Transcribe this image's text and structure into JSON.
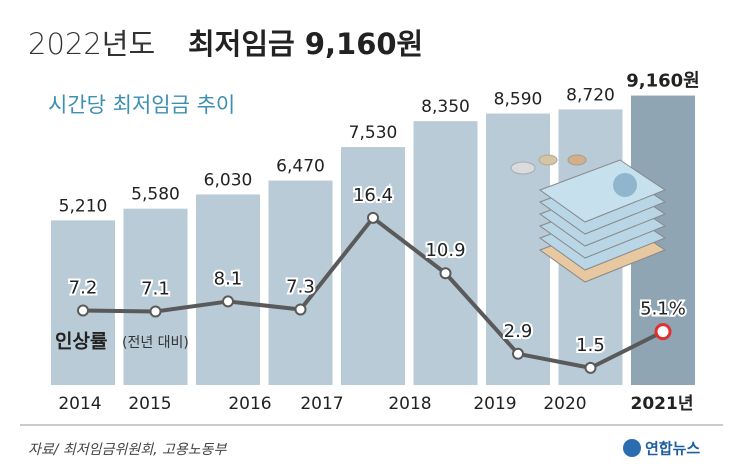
{
  "chart_data": {
    "type": "bar",
    "title_prefix": "2022년도",
    "title": "최저임금 9,160원",
    "subtitle": "시간당 최저임금 추이",
    "categories": [
      "2014",
      "2015",
      "2016",
      "2017",
      "2018",
      null,
      "2019",
      "2020",
      "2021년"
    ],
    "values": [
      5210,
      5580,
      6030,
      6470,
      7530,
      8350,
      8590,
      8720,
      9160
    ],
    "value_labels": [
      "5,210",
      "5,580",
      "6,030",
      "6,470",
      "7,530",
      "8,350",
      "8,590",
      "8,720",
      "9,160원"
    ],
    "color": "#b9cbd7",
    "highlight_color": "#8fa5b4",
    "line": {
      "type": "line",
      "name": "인상률",
      "note": "(전년 대비)",
      "values": [
        7.2,
        7.1,
        8.1,
        7.3,
        16.4,
        10.9,
        2.9,
        1.5,
        5.1
      ],
      "value_labels": [
        "7.2",
        "7.1",
        "8.1",
        "7.3",
        "16.4",
        "10.9",
        "2.9",
        "1.5",
        "5.1%"
      ],
      "color": "#5a5a5a",
      "highlight_color": "#e03030"
    },
    "source": "자료/ 최저임금위원회, 고용노동부",
    "logo": "연합뉴스"
  }
}
